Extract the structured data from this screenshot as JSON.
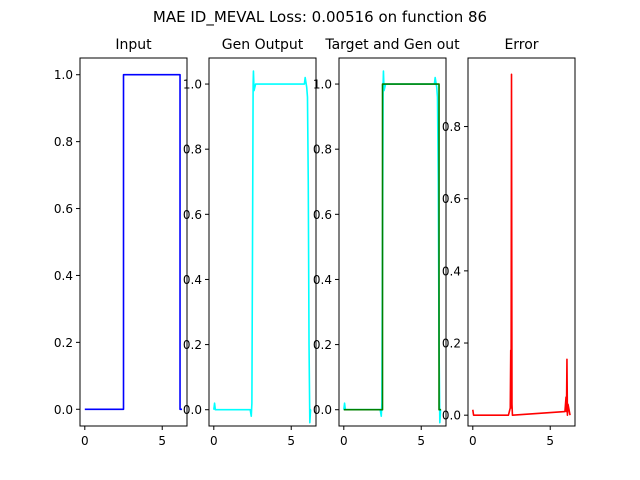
{
  "figure": {
    "title": "MAE ID_MEVAL Loss: 0.00516 on function 86"
  },
  "chart_data": [
    {
      "type": "line",
      "title": "Input",
      "xlim": [
        -0.31,
        6.6
      ],
      "ylim": [
        -0.05,
        1.05
      ],
      "x_ticks": [
        0,
        5
      ],
      "y_ticks": [
        0.0,
        0.2,
        0.4,
        0.6,
        0.8,
        1.0
      ],
      "series": [
        {
          "color": "#0000ff",
          "points": [
            [
              0,
              0
            ],
            [
              2.5,
              0
            ],
            [
              2.5,
              1
            ],
            [
              6.15,
              1
            ],
            [
              6.15,
              0
            ],
            [
              6.28,
              0
            ]
          ]
        }
      ]
    },
    {
      "type": "line",
      "title": "Gen Output",
      "xlim": [
        -0.31,
        6.6
      ],
      "ylim": [
        -0.05,
        1.08
      ],
      "x_ticks": [
        0,
        5
      ],
      "y_ticks": [
        0.0,
        0.2,
        0.4,
        0.6,
        0.8,
        1.0
      ],
      "series": [
        {
          "color": "#00ffff",
          "points": [
            [
              0,
              0.0
            ],
            [
              0.05,
              0.02
            ],
            [
              0.1,
              0.0
            ],
            [
              2.35,
              0.0
            ],
            [
              2.42,
              -0.02
            ],
            [
              2.46,
              0.02
            ],
            [
              2.5,
              0.5
            ],
            [
              2.54,
              1.0
            ],
            [
              2.56,
              1.04
            ],
            [
              2.6,
              0.98
            ],
            [
              2.7,
              1.0
            ],
            [
              5.85,
              1.0
            ],
            [
              5.9,
              1.02
            ],
            [
              6.0,
              0.99
            ],
            [
              6.05,
              0.96
            ],
            [
              6.1,
              0.7
            ],
            [
              6.15,
              0.2
            ],
            [
              6.2,
              -0.04
            ],
            [
              6.25,
              0.0
            ],
            [
              6.28,
              0.0
            ]
          ]
        }
      ]
    },
    {
      "type": "line",
      "title": "Target and Gen out",
      "xlim": [
        -0.31,
        6.6
      ],
      "ylim": [
        -0.05,
        1.08
      ],
      "x_ticks": [
        0,
        5
      ],
      "y_ticks": [
        0.0,
        0.2,
        0.4,
        0.6,
        0.8,
        1.0
      ],
      "series": [
        {
          "color": "#00ffff",
          "points": [
            [
              0,
              0.0
            ],
            [
              0.05,
              0.02
            ],
            [
              0.1,
              0.0
            ],
            [
              2.35,
              0.0
            ],
            [
              2.42,
              -0.02
            ],
            [
              2.46,
              0.02
            ],
            [
              2.5,
              0.5
            ],
            [
              2.54,
              1.0
            ],
            [
              2.56,
              1.04
            ],
            [
              2.6,
              0.98
            ],
            [
              2.7,
              1.0
            ],
            [
              5.85,
              1.0
            ],
            [
              5.9,
              1.02
            ],
            [
              6.0,
              0.99
            ],
            [
              6.05,
              0.96
            ],
            [
              6.1,
              0.7
            ],
            [
              6.15,
              0.2
            ],
            [
              6.2,
              -0.04
            ],
            [
              6.25,
              0.0
            ],
            [
              6.28,
              0.0
            ]
          ]
        },
        {
          "color": "#008000",
          "points": [
            [
              0,
              0
            ],
            [
              2.5,
              0
            ],
            [
              2.5,
              1
            ],
            [
              6.15,
              1
            ],
            [
              6.15,
              0
            ],
            [
              6.28,
              0
            ]
          ]
        }
      ]
    },
    {
      "type": "line",
      "title": "Error",
      "xlim": [
        -0.31,
        6.6
      ],
      "ylim": [
        -0.03,
        0.99
      ],
      "x_ticks": [
        0,
        5
      ],
      "y_ticks": [
        0.0,
        0.2,
        0.4,
        0.6,
        0.8
      ],
      "series": [
        {
          "color": "#ff0000",
          "points": [
            [
              0,
              0.015
            ],
            [
              0.05,
              0.0
            ],
            [
              2.3,
              0.0
            ],
            [
              2.42,
              0.02
            ],
            [
              2.45,
              0.18
            ],
            [
              2.47,
              0.02
            ],
            [
              2.5,
              0.945
            ],
            [
              2.53,
              0.03
            ],
            [
              2.56,
              0.0
            ],
            [
              5.95,
              0.01
            ],
            [
              6.02,
              0.05
            ],
            [
              6.05,
              0.01
            ],
            [
              6.08,
              0.155
            ],
            [
              6.11,
              0.0
            ],
            [
              6.15,
              0.03
            ],
            [
              6.28,
              0.0
            ]
          ]
        }
      ]
    }
  ]
}
